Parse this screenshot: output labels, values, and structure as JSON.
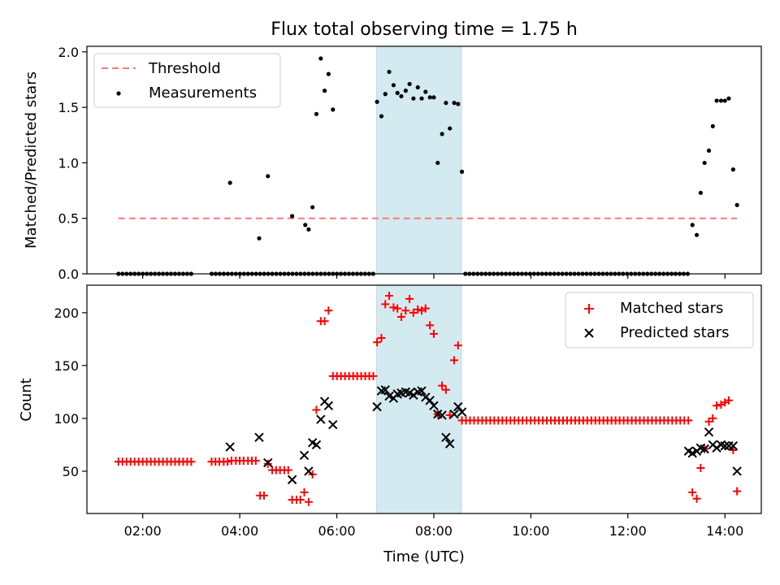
{
  "figure": {
    "title": "Flux total observing time = 1.75 h",
    "xlabel": "Time (UTC)"
  },
  "chart_data": [
    {
      "type": "scatter",
      "panel": "top",
      "ylabel": "Matched/Predicted stars",
      "xlim": [
        0.85,
        14.75
      ],
      "ylim": [
        0.0,
        2.05
      ],
      "yticks": [
        0.0,
        0.5,
        1.0,
        1.5,
        2.0
      ],
      "ytick_labels": [
        "0.0",
        "0.5",
        "1.0",
        "1.5",
        "2.0"
      ],
      "xticks": [
        2,
        4,
        6,
        8,
        10,
        12,
        14
      ],
      "grid": false,
      "legend_position": "top-left",
      "shaded_interval": {
        "x": [
          6.82,
          8.57
        ],
        "color": "#d3eaf0"
      },
      "threshold": {
        "name": "Threshold",
        "y": 0.5,
        "x": [
          1.5,
          14.25
        ],
        "color": "#ff7777",
        "style": "dashed"
      },
      "series": [
        {
          "name": "Measurements",
          "color": "#000000",
          "marker": "dot",
          "points": [
            [
              3.8,
              0.82
            ],
            [
              4.4,
              0.32
            ],
            [
              4.58,
              0.88
            ],
            [
              5.08,
              0.52
            ],
            [
              5.35,
              0.44
            ],
            [
              5.42,
              0.4
            ],
            [
              5.5,
              0.6
            ],
            [
              5.58,
              1.44
            ],
            [
              5.67,
              1.94
            ],
            [
              5.75,
              1.65
            ],
            [
              5.83,
              1.8
            ],
            [
              5.92,
              1.48
            ],
            [
              6.83,
              1.55
            ],
            [
              6.92,
              1.42
            ],
            [
              7.0,
              1.62
            ],
            [
              7.08,
              1.82
            ],
            [
              7.17,
              1.7
            ],
            [
              7.25,
              1.63
            ],
            [
              7.33,
              1.6
            ],
            [
              7.42,
              1.65
            ],
            [
              7.5,
              1.71
            ],
            [
              7.58,
              1.58
            ],
            [
              7.67,
              1.68
            ],
            [
              7.75,
              1.58
            ],
            [
              7.83,
              1.64
            ],
            [
              7.92,
              1.59
            ],
            [
              8.0,
              1.59
            ],
            [
              8.08,
              1.0
            ],
            [
              8.17,
              1.26
            ],
            [
              8.25,
              1.54
            ],
            [
              8.33,
              1.31
            ],
            [
              8.42,
              1.54
            ],
            [
              8.5,
              1.53
            ],
            [
              8.58,
              0.92
            ],
            [
              13.33,
              0.44
            ],
            [
              13.42,
              0.35
            ],
            [
              13.5,
              0.73
            ],
            [
              13.58,
              1.0
            ],
            [
              13.67,
              1.11
            ],
            [
              13.75,
              1.33
            ],
            [
              13.83,
              1.56
            ],
            [
              13.92,
              1.56
            ],
            [
              14.0,
              1.56
            ],
            [
              14.08,
              1.58
            ],
            [
              14.17,
              0.94
            ],
            [
              14.25,
              0.62
            ]
          ],
          "zero_runs": [
            [
              1.5,
              3.0
            ],
            [
              3.42,
              5.92
            ],
            [
              6.0,
              6.8
            ],
            [
              8.65,
              13.25
            ]
          ]
        }
      ]
    },
    {
      "type": "scatter",
      "panel": "bottom",
      "ylabel": "Count",
      "xlabel": "Time (UTC)",
      "xlim": [
        0.85,
        14.75
      ],
      "ylim": [
        10,
        226
      ],
      "yticks": [
        50,
        100,
        150,
        200
      ],
      "ytick_labels": [
        "50",
        "100",
        "150",
        "200"
      ],
      "xticks": [
        2,
        4,
        6,
        8,
        10,
        12,
        14
      ],
      "xtick_labels": [
        "02:00",
        "04:00",
        "06:00",
        "08:00",
        "10:00",
        "12:00",
        "14:00"
      ],
      "grid": false,
      "legend_position": "top-right",
      "shaded_interval": {
        "x": [
          6.82,
          8.57
        ],
        "color": "#d3eaf0"
      },
      "series": [
        {
          "name": "Matched stars",
          "color": "#ff0000",
          "marker": "plus",
          "points": [
            [
              3.42,
              59
            ],
            [
              3.5,
              59
            ],
            [
              3.58,
              59
            ],
            [
              3.67,
              59
            ],
            [
              3.75,
              59
            ],
            [
              3.83,
              60
            ],
            [
              3.92,
              60
            ],
            [
              4.0,
              60
            ],
            [
              4.08,
              60
            ],
            [
              4.17,
              60
            ],
            [
              4.25,
              60
            ],
            [
              4.33,
              60
            ],
            [
              4.42,
              27
            ],
            [
              4.5,
              27
            ],
            [
              4.58,
              57
            ],
            [
              4.67,
              51
            ],
            [
              4.75,
              51
            ],
            [
              4.83,
              51
            ],
            [
              4.92,
              51
            ],
            [
              5.0,
              51
            ],
            [
              5.08,
              23
            ],
            [
              5.17,
              23
            ],
            [
              5.25,
              23
            ],
            [
              5.33,
              30
            ],
            [
              5.42,
              21
            ],
            [
              5.5,
              47
            ],
            [
              5.58,
              108
            ],
            [
              5.67,
              192
            ],
            [
              5.75,
              192
            ],
            [
              5.83,
              202
            ],
            [
              6.83,
              172
            ],
            [
              6.92,
              176
            ],
            [
              7.0,
              208
            ],
            [
              7.08,
              216
            ],
            [
              7.17,
              205
            ],
            [
              7.25,
              204
            ],
            [
              7.33,
              196
            ],
            [
              7.42,
              202
            ],
            [
              7.5,
              213
            ],
            [
              7.58,
              200
            ],
            [
              7.67,
              203
            ],
            [
              7.75,
              202
            ],
            [
              7.83,
              204
            ],
            [
              7.92,
              188
            ],
            [
              8.0,
              180
            ],
            [
              8.08,
              104
            ],
            [
              8.17,
              131
            ],
            [
              8.25,
              127
            ],
            [
              8.33,
              103
            ],
            [
              8.42,
              155
            ],
            [
              8.5,
              169
            ],
            [
              13.33,
              30
            ],
            [
              13.42,
              24
            ],
            [
              13.5,
              53
            ],
            [
              13.58,
              71
            ],
            [
              13.67,
              97
            ],
            [
              13.75,
              100
            ],
            [
              13.83,
              112
            ],
            [
              13.92,
              113
            ],
            [
              14.0,
              115
            ],
            [
              14.08,
              117
            ],
            [
              14.17,
              70
            ],
            [
              14.25,
              31
            ]
          ],
          "runs": [
            {
              "x": [
                1.5,
                3.0
              ],
              "y": 59
            },
            {
              "x": [
                5.92,
                6.8
              ],
              "y": 140
            },
            {
              "x": [
                8.58,
                13.25
              ],
              "y": 98
            }
          ]
        },
        {
          "name": "Predicted stars",
          "color": "#000000",
          "marker": "cross",
          "points": [
            [
              3.8,
              73
            ],
            [
              4.4,
              82
            ],
            [
              4.58,
              58
            ],
            [
              5.08,
              42
            ],
            [
              5.33,
              65
            ],
            [
              5.42,
              50
            ],
            [
              5.5,
              77
            ],
            [
              5.58,
              75
            ],
            [
              5.67,
              99
            ],
            [
              5.75,
              116
            ],
            [
              5.83,
              112
            ],
            [
              5.92,
              94
            ],
            [
              6.83,
              111
            ],
            [
              6.92,
              126
            ],
            [
              7.0,
              127
            ],
            [
              7.08,
              121
            ],
            [
              7.17,
              119
            ],
            [
              7.25,
              123
            ],
            [
              7.33,
              124
            ],
            [
              7.42,
              125
            ],
            [
              7.5,
              124
            ],
            [
              7.58,
              122
            ],
            [
              7.67,
              125
            ],
            [
              7.75,
              126
            ],
            [
              7.83,
              120
            ],
            [
              7.92,
              117
            ],
            [
              8.0,
              112
            ],
            [
              8.08,
              104
            ],
            [
              8.17,
              103
            ],
            [
              8.25,
              82
            ],
            [
              8.33,
              76
            ],
            [
              8.42,
              104
            ],
            [
              8.5,
              111
            ],
            [
              8.58,
              106
            ],
            [
              13.25,
              69
            ],
            [
              13.33,
              67
            ],
            [
              13.42,
              69
            ],
            [
              13.5,
              72
            ],
            [
              13.58,
              71
            ],
            [
              13.67,
              87
            ],
            [
              13.75,
              75
            ],
            [
              13.83,
              72
            ],
            [
              13.92,
              75
            ],
            [
              14.0,
              74
            ],
            [
              14.08,
              74
            ],
            [
              14.17,
              74
            ],
            [
              14.25,
              50
            ]
          ]
        }
      ]
    }
  ]
}
